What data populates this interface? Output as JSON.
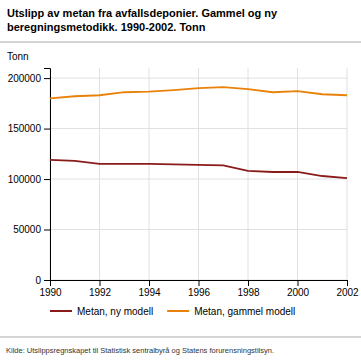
{
  "chart_data": {
    "type": "line",
    "title": [
      "Utslipp av metan fra avfallsdeponier. Gammel og ny",
      "beregningsmetodikk. 1990-2002. Tonn"
    ],
    "y_label": "Tonn",
    "source": "Kilde: Utslippsregnskapet til Statistisk sentralbyrå og Statens forurensningstilsyn.",
    "x": [
      1990,
      1991,
      1992,
      1993,
      1994,
      1995,
      1996,
      1997,
      1998,
      1999,
      2000,
      2001,
      2002
    ],
    "series": [
      {
        "name": "Metan, ny modell",
        "color": "#8B1A1A",
        "values": [
          119000,
          118000,
          115000,
          115000,
          115000,
          114500,
          114000,
          113500,
          108000,
          107000,
          107000,
          103000,
          101000
        ]
      },
      {
        "name": "Metan, gammel modell",
        "color": "#E8820A",
        "values": [
          180000,
          182000,
          183000,
          186000,
          186500,
          188000,
          190000,
          191000,
          189000,
          186000,
          187000,
          184000,
          183000
        ]
      }
    ],
    "xlim": [
      1990,
      2002
    ],
    "xticks": [
      1990,
      1992,
      1994,
      1996,
      1998,
      2000,
      2002
    ],
    "ylim": [
      0,
      210000
    ],
    "yticks": [
      0,
      50000,
      100000,
      150000,
      200000
    ],
    "grid": true,
    "legend": "bottom"
  }
}
